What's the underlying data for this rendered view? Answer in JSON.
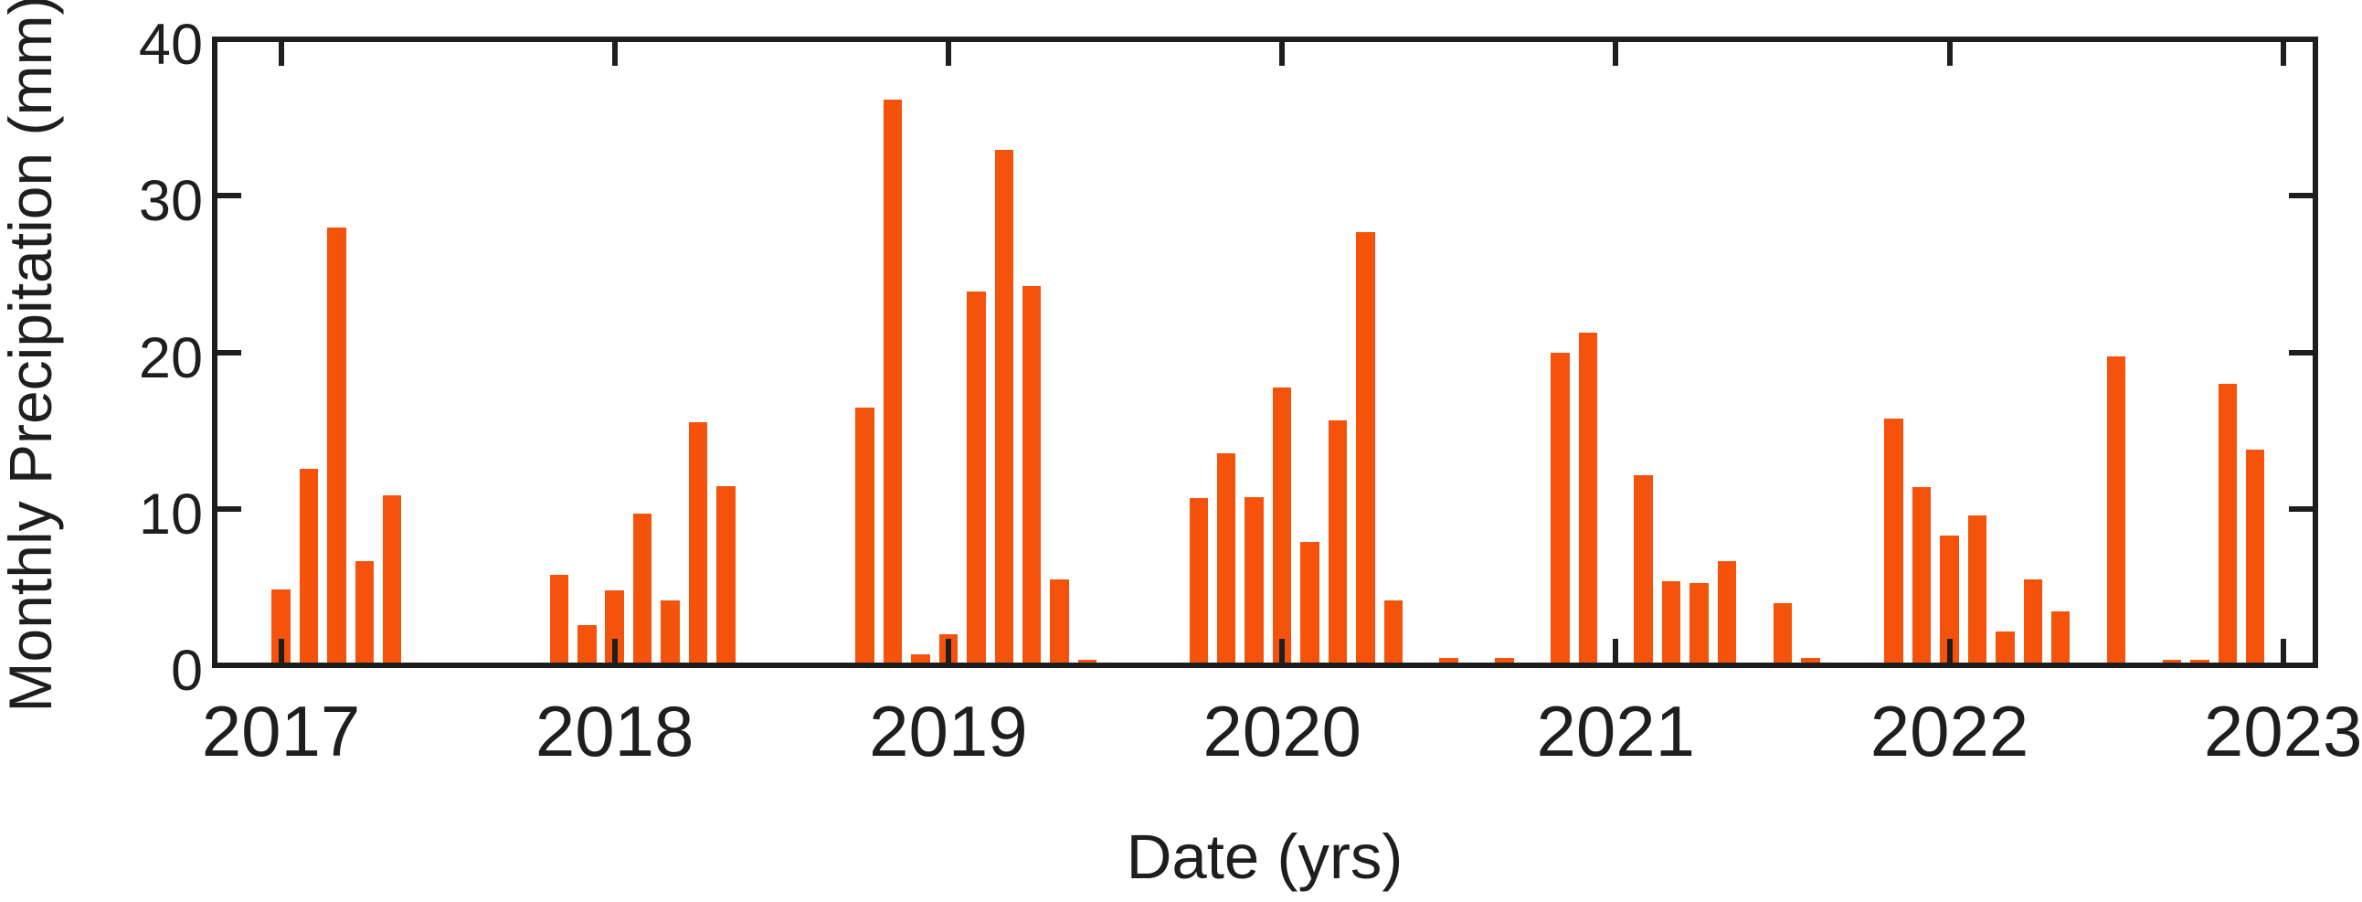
{
  "colors": {
    "bar": "#F5530B",
    "axis": "#1E1E1E",
    "text": "#1E1E1E",
    "background": "#FFFFFF"
  },
  "chart_data": {
    "type": "bar",
    "title": "",
    "xlabel": "Date (yrs)",
    "ylabel": "Monthly Precipitation (mm)",
    "series_name": "Monthly Precipitation",
    "ylim": [
      0,
      40
    ],
    "y_ticks": [
      0,
      10,
      20,
      30,
      40
    ],
    "y_tick_labels": [
      "0",
      "10",
      "20",
      "30",
      "40"
    ],
    "x_tick_labels": [
      "2017",
      "2018",
      "2019",
      "2020",
      "2021",
      "2022",
      "2023"
    ],
    "grid": false,
    "legend": null,
    "tick_direction": "in",
    "box": true,
    "x": [
      "2017-01",
      "2017-02",
      "2017-03",
      "2017-04",
      "2017-05",
      "2017-06",
      "2017-07",
      "2017-08",
      "2017-09",
      "2017-10",
      "2017-11",
      "2017-12",
      "2018-01",
      "2018-02",
      "2018-03",
      "2018-04",
      "2018-05",
      "2018-06",
      "2018-07",
      "2018-08",
      "2018-09",
      "2018-10",
      "2018-11",
      "2018-12",
      "2019-01",
      "2019-02",
      "2019-03",
      "2019-04",
      "2019-05",
      "2019-06",
      "2019-07",
      "2019-08",
      "2019-09",
      "2019-10",
      "2019-11",
      "2019-12",
      "2020-01",
      "2020-02",
      "2020-03",
      "2020-04",
      "2020-05",
      "2020-06",
      "2020-07",
      "2020-08",
      "2020-09",
      "2020-10",
      "2020-11",
      "2020-12",
      "2021-01",
      "2021-02",
      "2021-03",
      "2021-04",
      "2021-05",
      "2021-06",
      "2021-07",
      "2021-08",
      "2021-09",
      "2021-10",
      "2021-11",
      "2021-12",
      "2022-01",
      "2022-02",
      "2022-03",
      "2022-04",
      "2022-05",
      "2022-06",
      "2022-07",
      "2022-08",
      "2022-09",
      "2022-10",
      "2022-11",
      "2022-12"
    ],
    "values": [
      4.7,
      12.4,
      27.8,
      6.5,
      10.7,
      0,
      0,
      0,
      0,
      0,
      5.6,
      2.4,
      4.6,
      9.5,
      4.0,
      15.4,
      11.3,
      0,
      0,
      0,
      0,
      16.3,
      36.0,
      0.5,
      1.8,
      23.7,
      32.8,
      24.1,
      5.3,
      0.2,
      0,
      0,
      0,
      10.5,
      13.4,
      10.6,
      17.6,
      7.7,
      15.5,
      27.5,
      4.0,
      0,
      0.3,
      0,
      0.3,
      0,
      19.8,
      21.1,
      0,
      12.0,
      5.2,
      5.1,
      6.5,
      0,
      3.8,
      0.3,
      0,
      0,
      15.6,
      11.2,
      8.1,
      9.4,
      2.0,
      5.3,
      3.3,
      0,
      19.6,
      0,
      0.2,
      0.2,
      17.8,
      13.6
    ]
  }
}
